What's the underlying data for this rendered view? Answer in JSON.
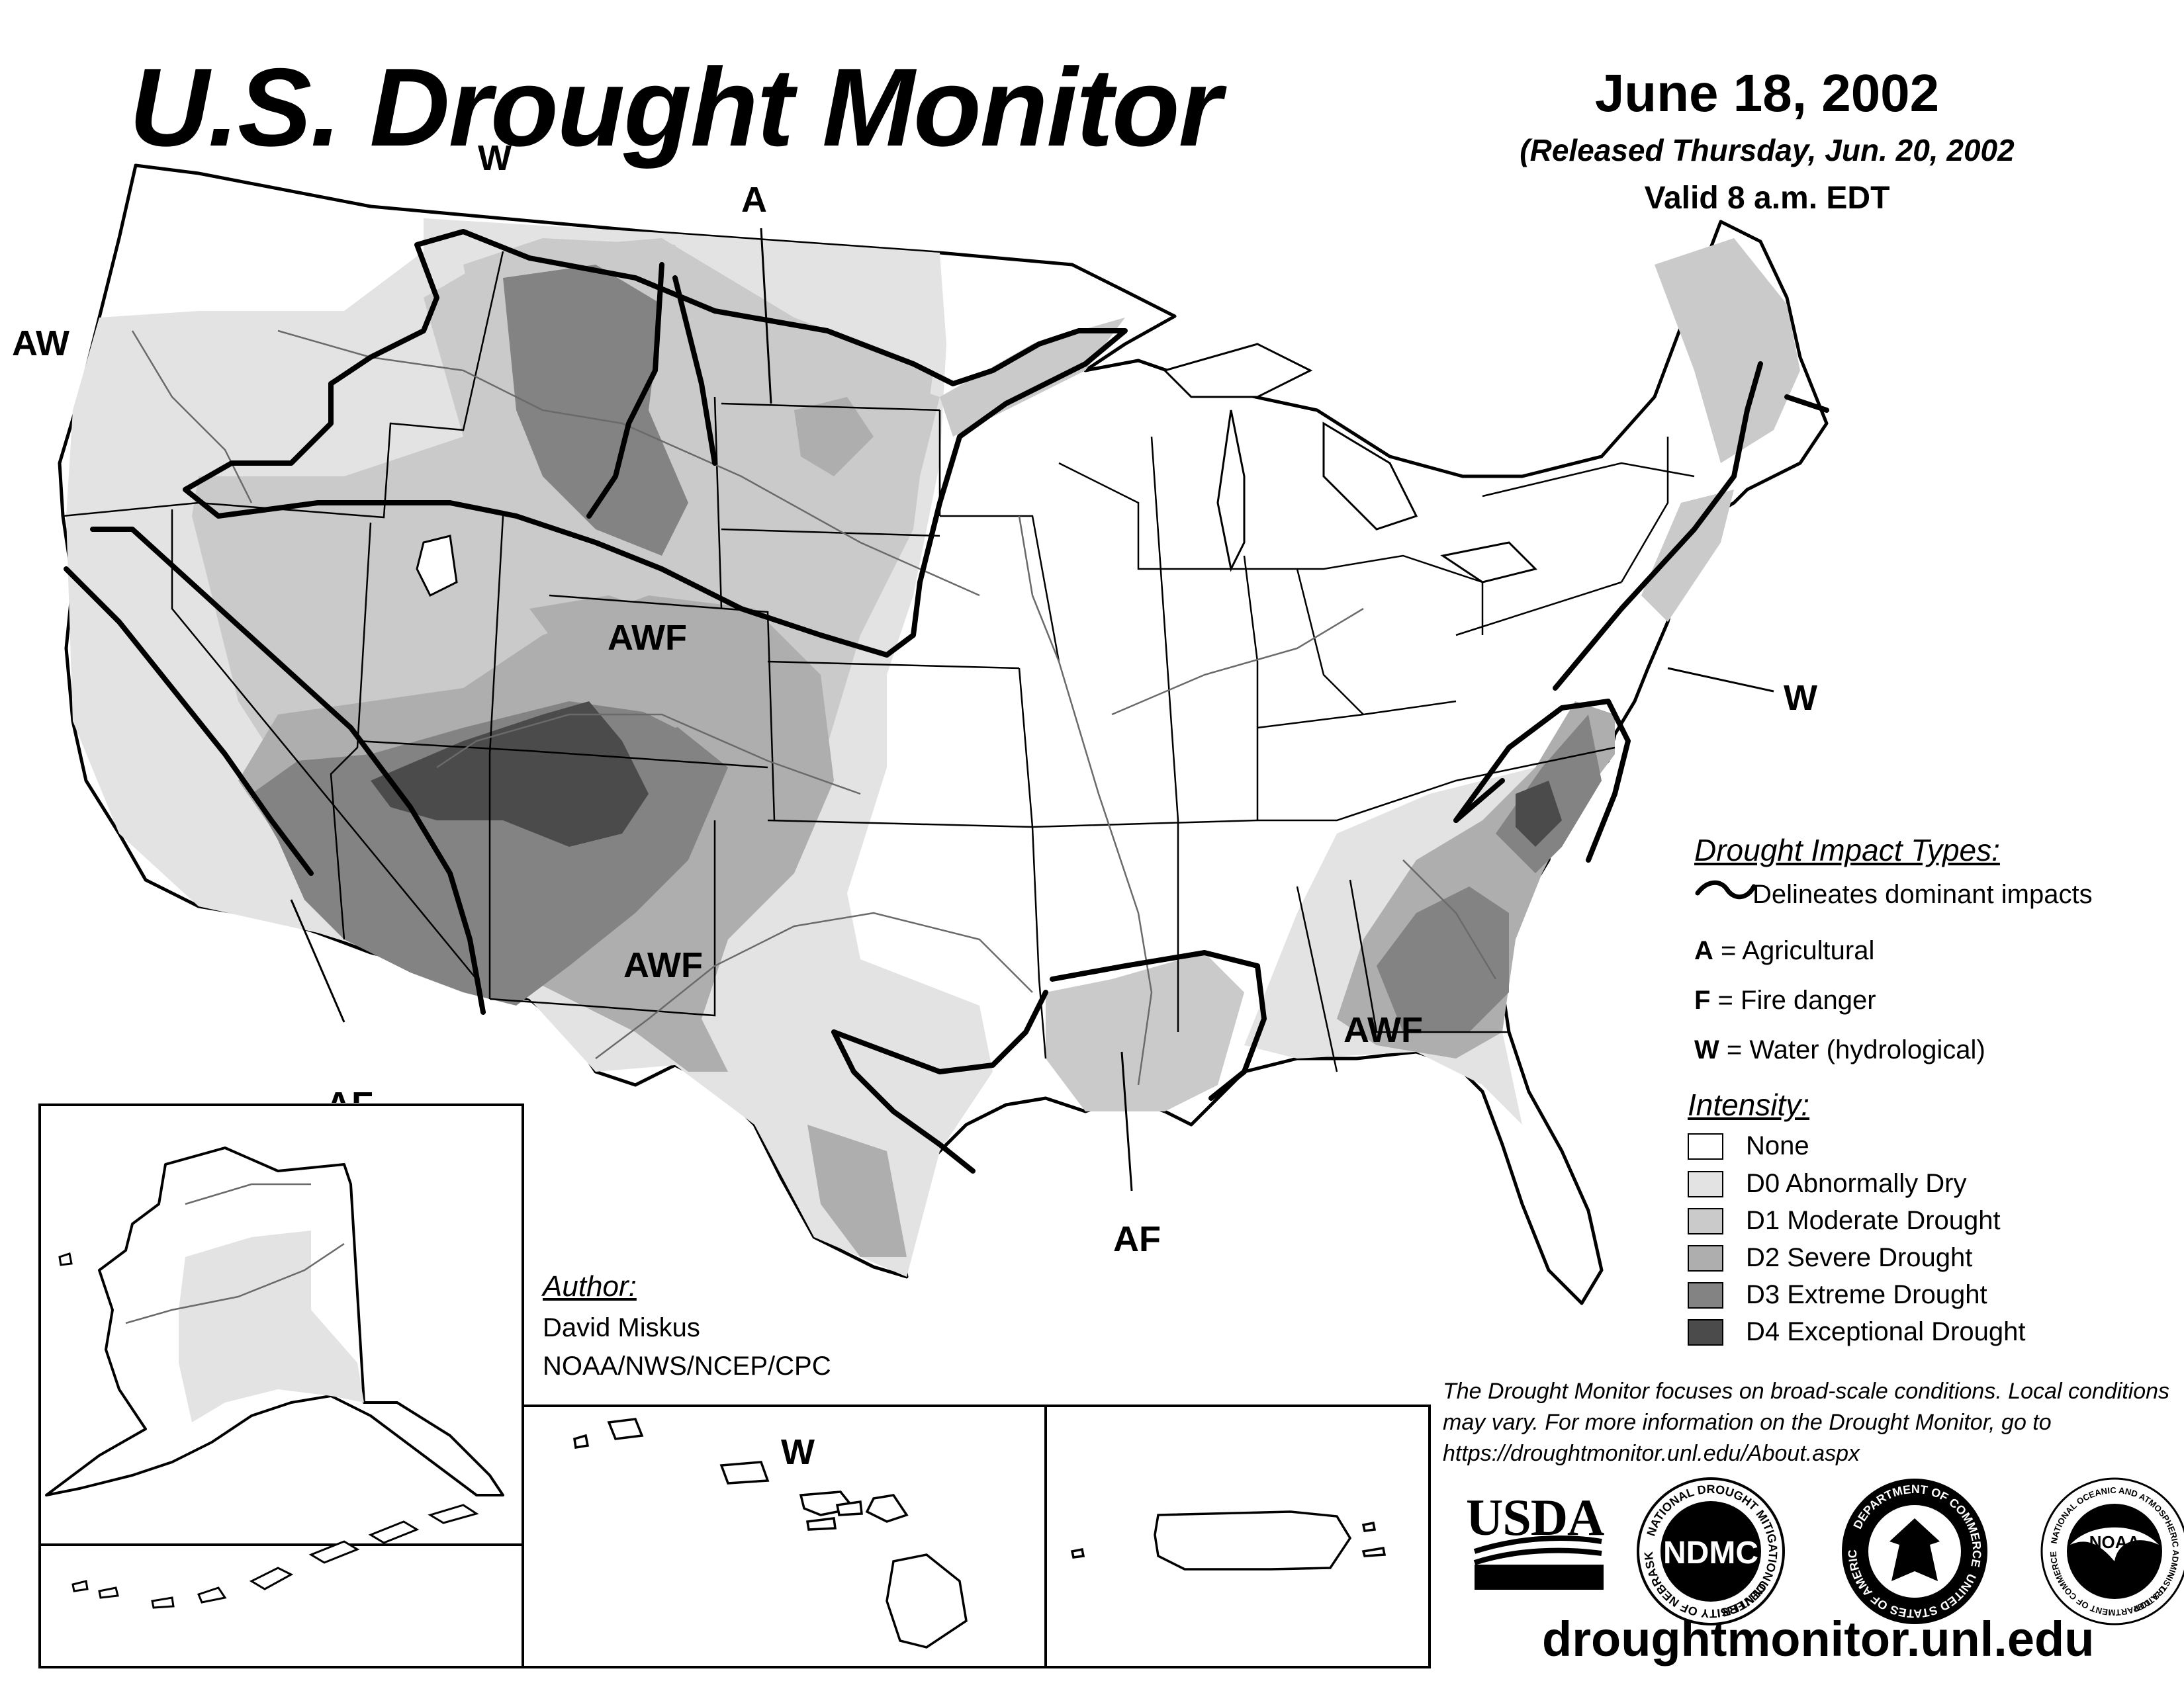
{
  "header": {
    "title": "U.S. Drought Monitor",
    "date": "June 18, 2002",
    "released": "(Released Thursday, Jun. 20, 2002",
    "valid": "Valid 8 a.m. EDT"
  },
  "map_labels": {
    "w_north": "W",
    "a_north": "A",
    "aw_west": "AW",
    "awf_colorado": "AWF",
    "awf_texas": "AWF",
    "af_southwest": "AF",
    "af_gulf": "AF",
    "awf_southeast": "AWF",
    "w_east": "W",
    "w_hawaii": "W"
  },
  "legend": {
    "impact_title": "Drought Impact Types:",
    "delineates": "Delineates dominant impacts",
    "impacts": [
      {
        "code": "A",
        "text": " = Agricultural"
      },
      {
        "code": "F",
        "text": " = Fire danger"
      },
      {
        "code": "W",
        "text": " = Water (hydrological)"
      }
    ],
    "intensity_title": "Intensity:",
    "intensity": [
      {
        "label": "None",
        "color": "#ffffff"
      },
      {
        "label": "D0 Abnormally Dry",
        "color": "#e3e3e3"
      },
      {
        "label": "D1 Moderate Drought",
        "color": "#cacaca"
      },
      {
        "label": "D2 Severe Drought",
        "color": "#aeaeae"
      },
      {
        "label": "D3 Extreme Drought",
        "color": "#838383"
      },
      {
        "label": "D4 Exceptional Drought",
        "color": "#4b4b4b"
      }
    ]
  },
  "author": {
    "heading": "Author:",
    "name": "David Miskus",
    "org": "NOAA/NWS/NCEP/CPC"
  },
  "disclaimer": "The Drought Monitor focuses on broad-scale conditions. Local conditions may vary. For more information on the Drought Monitor, go to https://droughtmonitor.unl.edu/About.aspx",
  "logos": {
    "usda": "USDA",
    "ndmc": "NDMC",
    "ndmc_ring_top": "NATIONAL DROUGHT MITIGATION CENTER",
    "ndmc_ring_bottom": "UNIVERSITY OF NEBRASKA",
    "commerce_ring_top": "DEPARTMENT OF COMMERCE",
    "commerce_ring_bottom": "UNITED STATES OF AMERICA",
    "noaa": "NOAA",
    "noaa_ring": "NATIONAL OCEANIC AND ATMOSPHERIC ADMINISTRATION",
    "noaa_ring_bottom": "U.S. DEPARTMENT OF COMMERCE"
  },
  "url": "droughtmonitor.unl.edu"
}
